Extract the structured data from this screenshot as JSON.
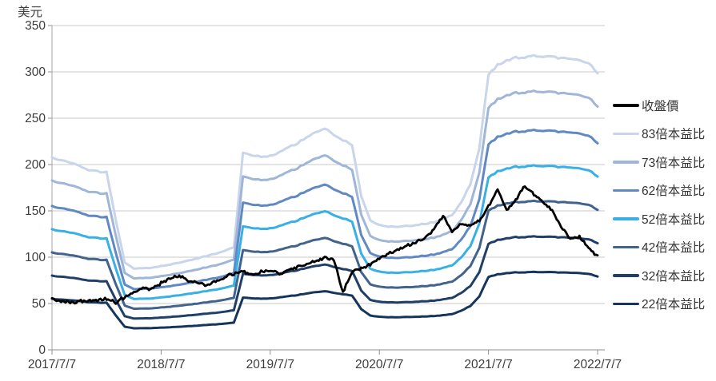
{
  "chart_data": {
    "type": "line",
    "title": "",
    "unit_label": "美元",
    "grid": true,
    "legend_position": "right",
    "x_axis": {
      "tick_labels": [
        "2017/7/7",
        "2018/7/7",
        "2019/7/7",
        "2020/7/7",
        "2021/7/7",
        "2022/7/7"
      ],
      "tick_months": [
        0,
        12,
        24,
        36,
        48,
        60
      ],
      "start": "2017/7/7",
      "end": "2022/7/7"
    },
    "y_axis": {
      "min": 0,
      "max": 350,
      "ticks": [
        0,
        50,
        100,
        150,
        200,
        250,
        300,
        350
      ]
    },
    "close_series": {
      "id": "close-price",
      "label": "收盤價",
      "color": "#000000",
      "note": "monthly close values, 2017/7 to 2022/7",
      "values_monthly": [
        55,
        52.5,
        51.5,
        52,
        53,
        53.5,
        55,
        51,
        57,
        63,
        67,
        65,
        72,
        77,
        80,
        74,
        72,
        70,
        74,
        79,
        82,
        85,
        81,
        84,
        86,
        82,
        86,
        90,
        93,
        96,
        100,
        96,
        62,
        85,
        88,
        92,
        98,
        104,
        108,
        112,
        116,
        121,
        130,
        145,
        128,
        136,
        134,
        139,
        155,
        173,
        150,
        162,
        177,
        168,
        160,
        150,
        133,
        120,
        122,
        110,
        101
      ]
    },
    "pe_bands": {
      "note": "band line value = ratio × trailing EPS (monthly, 2017/7 to 2022/7)",
      "eps_monthly": [
        2.5,
        2.47,
        2.44,
        2.4,
        2.34,
        2.32,
        2.31,
        1.69,
        1.14,
        1.06,
        1.06,
        1.07,
        1.09,
        1.11,
        1.13,
        1.16,
        1.19,
        1.22,
        1.25,
        1.29,
        1.33,
        2.56,
        2.53,
        2.51,
        2.52,
        2.57,
        2.63,
        2.69,
        2.76,
        2.83,
        2.88,
        2.8,
        2.73,
        2.67,
        2.0,
        1.68,
        1.62,
        1.6,
        1.6,
        1.61,
        1.62,
        1.64,
        1.66,
        1.7,
        1.75,
        1.92,
        2.15,
        2.62,
        3.58,
        3.7,
        3.77,
        3.8,
        3.81,
        3.82,
        3.82,
        3.81,
        3.8,
        3.79,
        3.77,
        3.74,
        3.6
      ],
      "bands": [
        {
          "ratio": 83,
          "label": "83倍本益比",
          "color": "#C8D5EA"
        },
        {
          "ratio": 73,
          "label": "73倍本益比",
          "color": "#9FB6D9"
        },
        {
          "ratio": 62,
          "label": "62倍本益比",
          "color": "#6089C4"
        },
        {
          "ratio": 52,
          "label": "52倍本益比",
          "color": "#38B0E6"
        },
        {
          "ratio": 42,
          "label": "42倍本益比",
          "color": "#42638C"
        },
        {
          "ratio": 32,
          "label": "32倍本益比",
          "color": "#203F68"
        },
        {
          "ratio": 22,
          "label": "22倍本益比",
          "color": "#16355C"
        }
      ]
    }
  }
}
